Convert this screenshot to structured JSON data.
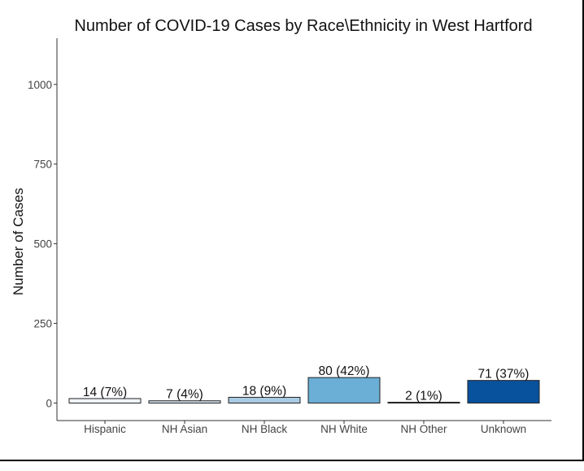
{
  "chart_data": {
    "type": "bar",
    "title": "Number of COVID-19 Cases by Race\\Ethnicity in West Hartford",
    "xlabel": "",
    "ylabel": "Number of Cases",
    "categories": [
      "Hispanic",
      "NH Asian",
      "NH Black",
      "NH White",
      "NH Other",
      "Unknown"
    ],
    "values": [
      14,
      7,
      18,
      80,
      2,
      71
    ],
    "data_labels": [
      "14 (7%)",
      "7 (4%)",
      "18 (9%)",
      "80 (42%)",
      "2 (1%)",
      "71 (37%)"
    ],
    "colors": [
      "#f0f5fb",
      "#d1e1f1",
      "#a9cbe4",
      "#6baed6",
      "#2f7dbd",
      "#08519c"
    ],
    "ylim": [
      -55,
      1145
    ],
    "yticks": [
      0,
      250,
      500,
      750,
      1000
    ],
    "ytick_labels": [
      "0",
      "250",
      "500",
      "750",
      "1000"
    ],
    "grid": false,
    "legend": "none"
  }
}
